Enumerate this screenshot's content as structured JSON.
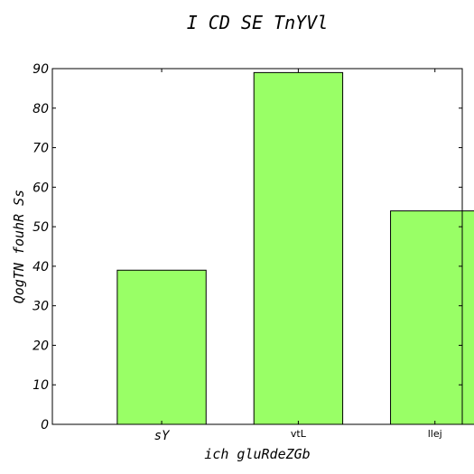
{
  "chart_data": {
    "type": "bar",
    "title": "I CD SE TnYVl",
    "xlabel": "ich gluRdeZGb",
    "ylabel": "QogTN fouhR Ss",
    "categories": [
      "sY",
      "vtL",
      "llej"
    ],
    "values": [
      39,
      89,
      54
    ],
    "ylim": [
      0,
      90
    ],
    "yticks": [
      0,
      10,
      20,
      30,
      40,
      50,
      60,
      70,
      80,
      90
    ],
    "bar_color": "#99ff66",
    "edge_color": "#000000",
    "grid": false,
    "legend": "none"
  }
}
